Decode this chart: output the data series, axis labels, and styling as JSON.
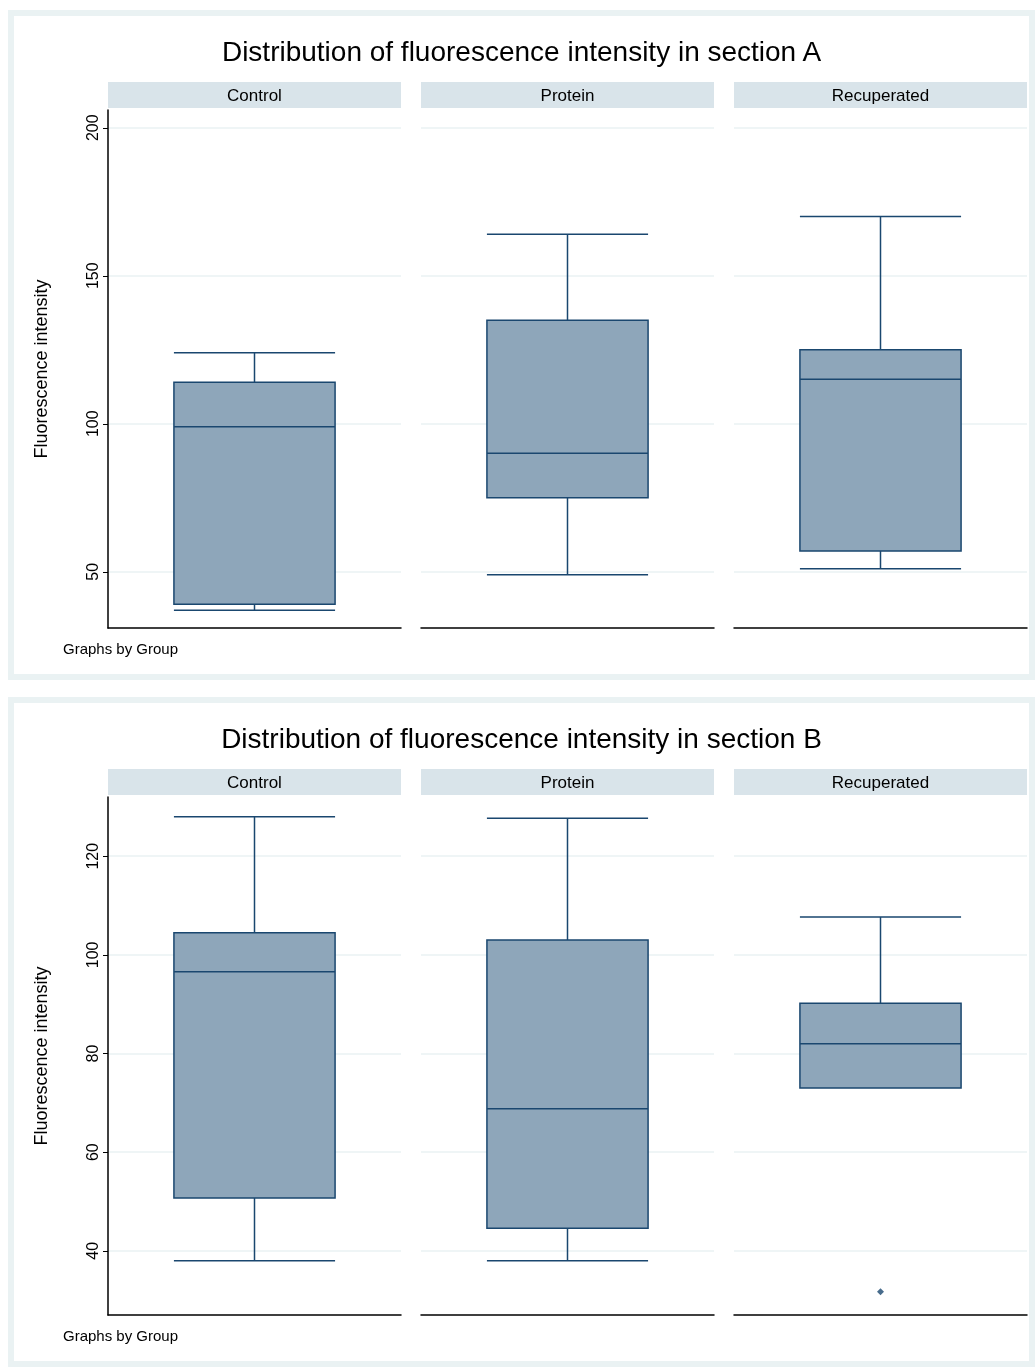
{
  "chart_data": [
    {
      "type": "box",
      "title": "Distribution of fluorescence intensity in section A",
      "ylabel": "Fluorescence intensity",
      "categories": [
        "Control",
        "Protein",
        "Recuperated"
      ],
      "color": "#8ea6ba",
      "ylim": [
        31,
        206
      ],
      "yticks": [
        50,
        100,
        150,
        200
      ],
      "grid": "y",
      "annotations": [
        "Graphs by Group"
      ],
      "boxes": [
        {
          "low": 37,
          "q1": 39,
          "median": 99,
          "q3": 114,
          "high": 124
        },
        {
          "low": 49,
          "q1": 75,
          "median": 90,
          "q3": 135,
          "high": 164
        },
        {
          "low": 51,
          "q1": 57,
          "median": 115,
          "q3": 125,
          "high": 170
        }
      ]
    },
    {
      "type": "box",
      "title": "Distribution of fluorescence intensity in section B",
      "ylabel": "Fluorescence intensity",
      "categories": [
        "Control",
        "Protein",
        "Recuperated"
      ],
      "color": "#8ea6ba",
      "ylim": [
        27,
        132
      ],
      "yticks": [
        40,
        60,
        80,
        100,
        120
      ],
      "grid": "y",
      "annotations": [
        "Graphs by Group"
      ],
      "boxes": [
        {
          "low": 38,
          "q1": 50.7,
          "median": 96.6,
          "q3": 104.5,
          "high": 128
        },
        {
          "low": 38,
          "q1": 44.6,
          "median": 68.8,
          "q3": 103,
          "high": 127.7
        },
        {
          "low": 73,
          "q1": 73,
          "median": 82,
          "q3": 90.2,
          "high": 107.7,
          "outliers": [
            31.7
          ]
        }
      ]
    }
  ]
}
